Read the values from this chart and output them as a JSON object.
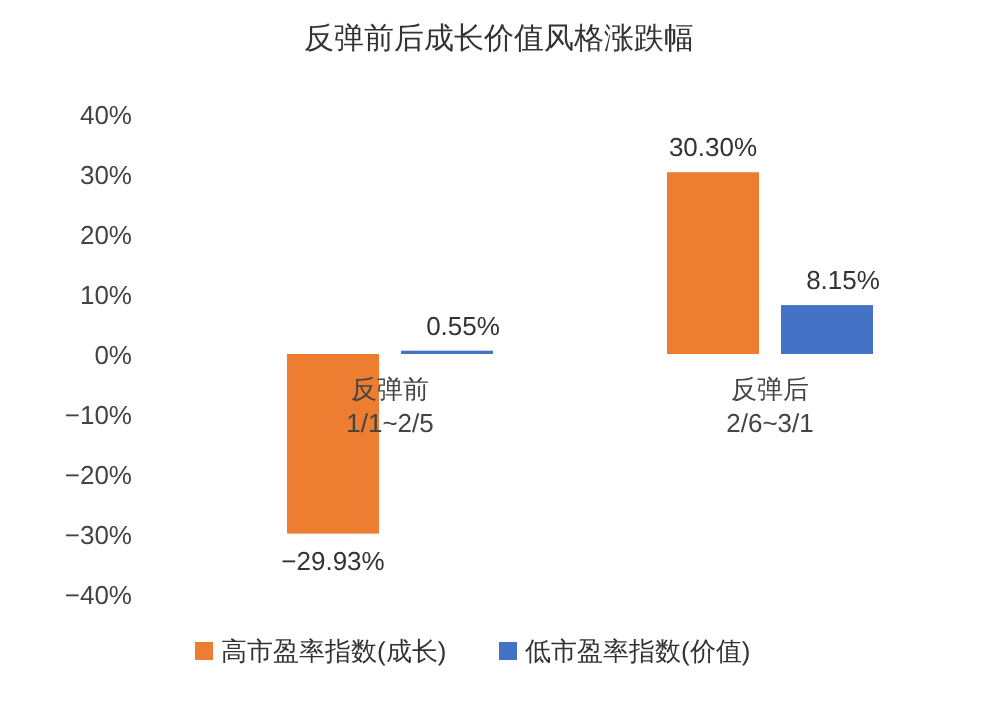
{
  "chart_data": {
    "type": "bar",
    "title": "反弹前后成长价值风格涨跌幅",
    "categories": [
      "反弹前\n1/1~2/5",
      "反弹后\n2/6~3/1"
    ],
    "series": [
      {
        "name": "高市盈率指数(成长)",
        "color": "#ed7d31",
        "values": [
          -29.93,
          30.3
        ],
        "value_labels": [
          "−29.93%",
          "30.30%"
        ]
      },
      {
        "name": "低市盈率指数(价值)",
        "color": "#4472c4",
        "values": [
          0.55,
          8.15
        ],
        "value_labels": [
          "0.55%",
          "8.15%"
        ]
      }
    ],
    "ylim": [
      -40,
      40
    ],
    "yticks": [
      {
        "value": -40,
        "label": "−40%"
      },
      {
        "value": -30,
        "label": "−30%"
      },
      {
        "value": -20,
        "label": "−20%"
      },
      {
        "value": -10,
        "label": "−10%"
      },
      {
        "value": 0,
        "label": "0%"
      },
      {
        "value": 10,
        "label": "10%"
      },
      {
        "value": 20,
        "label": "20%"
      },
      {
        "value": 30,
        "label": "30%"
      },
      {
        "value": 40,
        "label": "40%"
      }
    ],
    "grid": false,
    "legend": "bottom"
  }
}
